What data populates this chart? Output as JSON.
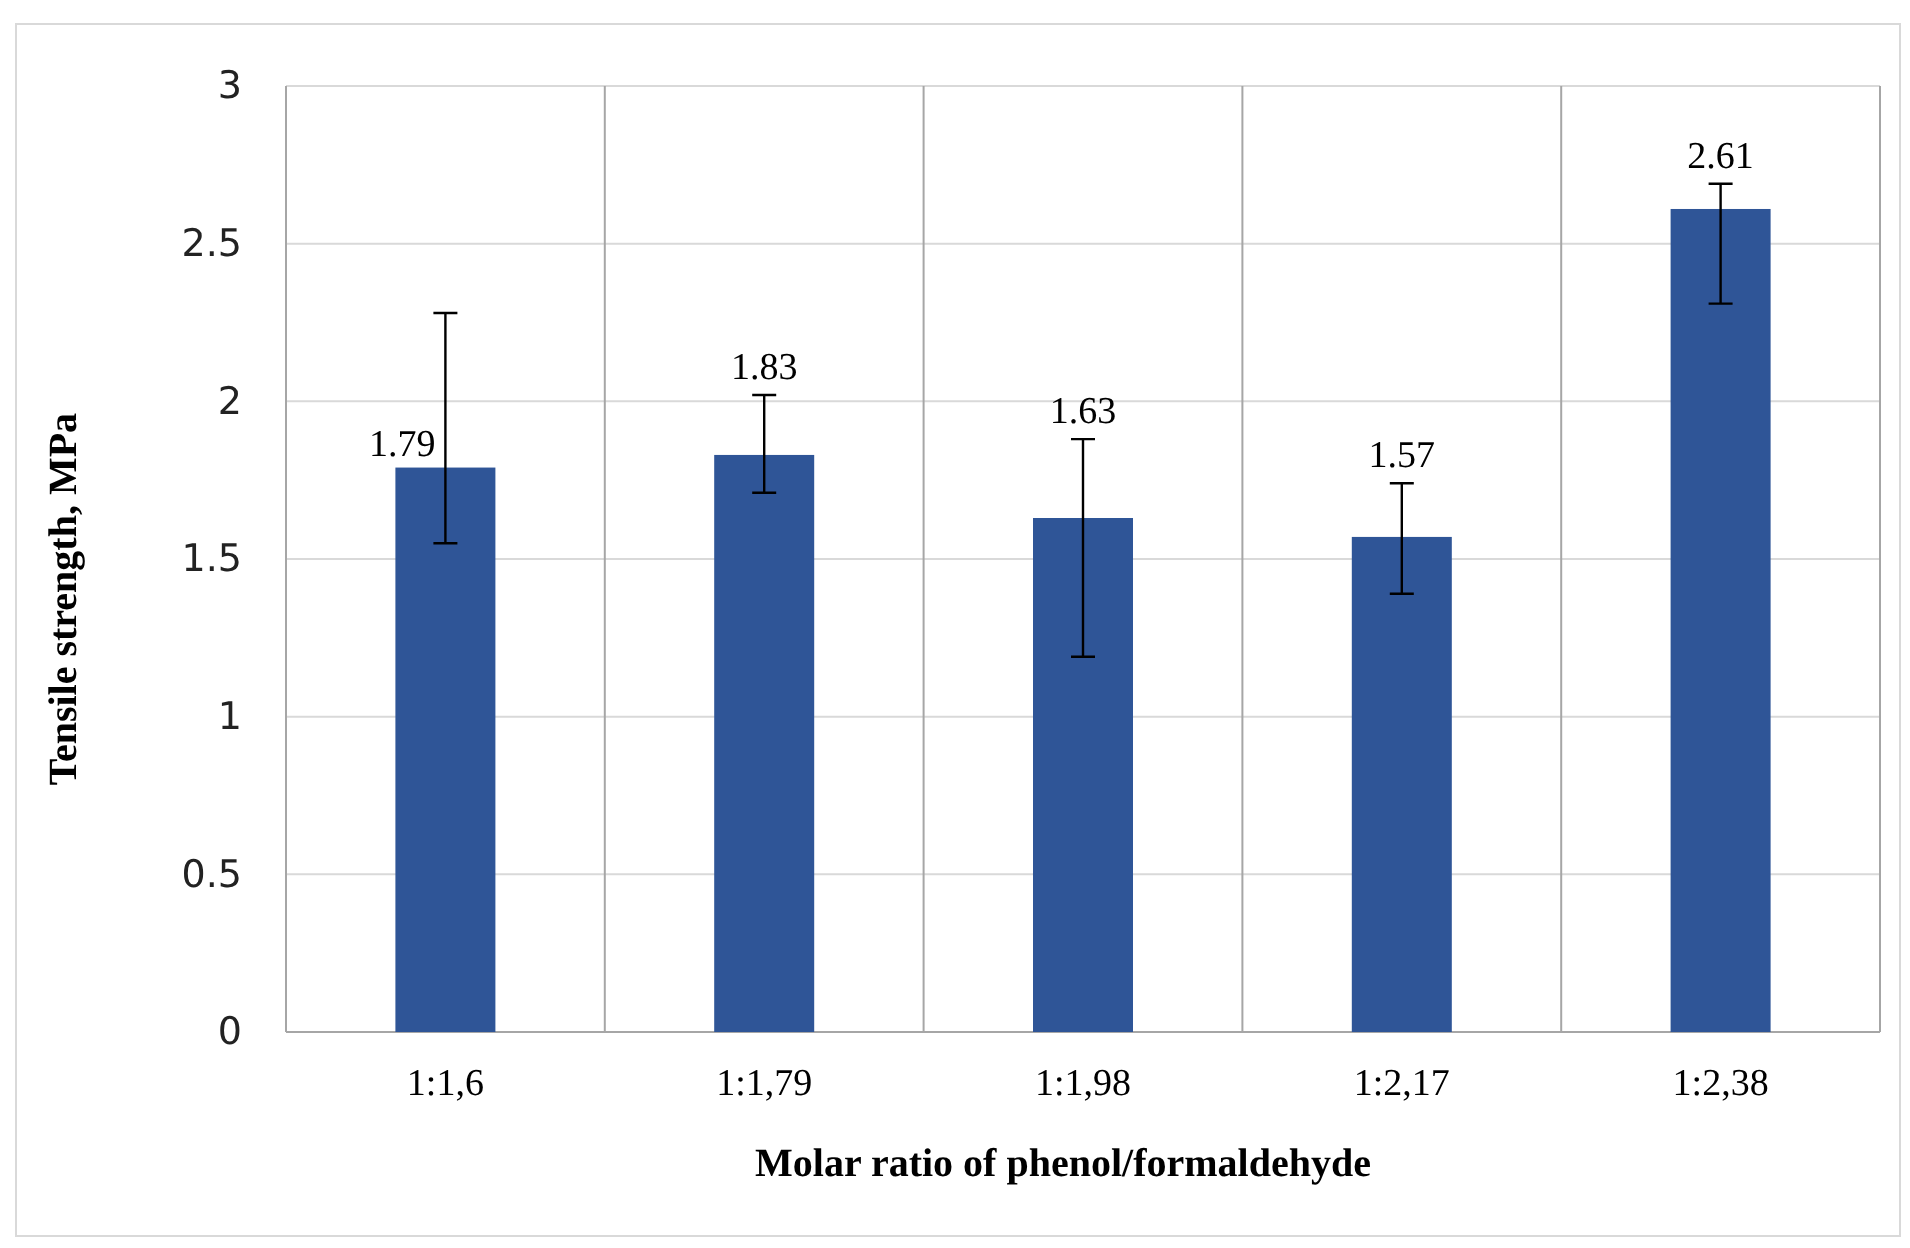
{
  "chart_data": {
    "type": "bar",
    "xlabel": "Molar ratio of phenol/formaldehyde",
    "ylabel": "Tensile strength, MPa",
    "categories": [
      "1:1,6",
      "1:1,79",
      "1:1,98",
      "1:2,17",
      "1:2,38"
    ],
    "values": [
      1.79,
      1.83,
      1.63,
      1.57,
      2.61
    ],
    "errors": [
      [
        1.55,
        2.28
      ],
      [
        1.71,
        2.02
      ],
      [
        1.19,
        1.88
      ],
      [
        1.39,
        1.74
      ],
      [
        2.31,
        2.69
      ]
    ],
    "color": "#2f5597",
    "data_labels": true,
    "ylim": [
      0,
      3
    ],
    "yticks": [
      0,
      0.5,
      1,
      1.5,
      2,
      2.5,
      3
    ],
    "grid": true
  }
}
